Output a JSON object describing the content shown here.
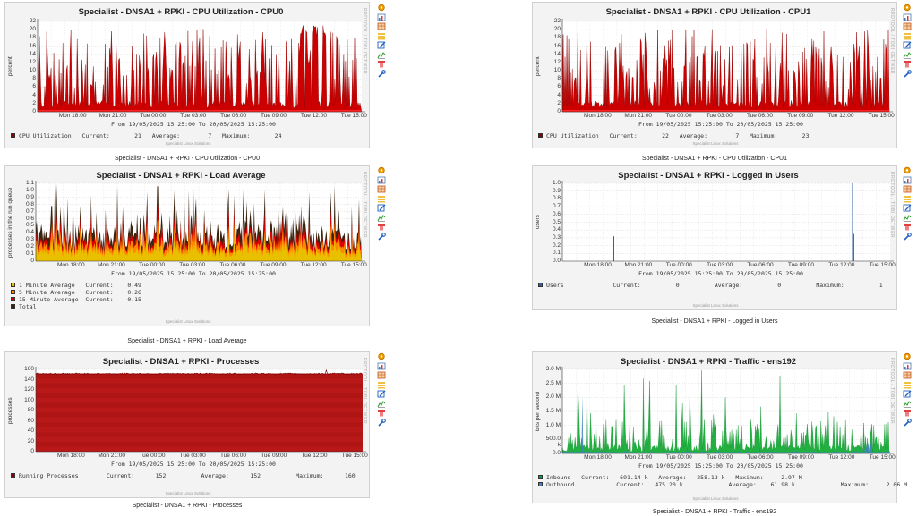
{
  "graphs": [
    {
      "title": "Specialist - DNSA1 + RPKI - CPU Utilization - CPU0",
      "caption": "Specialist - DNSA1 + RPKI - CPU Utilization - CPU0",
      "ylabel": "percent",
      "range": "From 19/05/2025 15:25:00 To 20/05/2025 15:25:00",
      "footer": "Specialist Linux Solutions",
      "side": "RRDTOOL / TOBI OETIKER",
      "legend": [
        {
          "color": "#8b0000",
          "text": "CPU Utilization   Current:       21   Average:        7   Maximum:       24"
        }
      ]
    },
    {
      "title": "Specialist - DNSA1 + RPKI - CPU Utilization - CPU1",
      "caption": "Specialist - DNSA1 + RPKI - CPU Utilization - CPU1",
      "ylabel": "percent",
      "range": "From 19/05/2025 15:25:00 To 20/05/2025 15:25:00",
      "footer": "Specialist Linux Solutions",
      "side": "RRDTOOL / TOBI OETIKER",
      "legend": [
        {
          "color": "#8b0000",
          "text": "CPU Utilization   Current:       22   Average:        7   Maximum:       23"
        }
      ]
    },
    {
      "title": "Specialist - DNSA1 + RPKI - Load Average",
      "caption": "Specialist - DNSA1 + RPKI - Load Average",
      "ylabel": "processes in the run queue",
      "range": "From 19/05/2025 15:25:00 To 20/05/2025 15:25:00",
      "footer": "Specialist Linux Solutions",
      "side": "RRDTOOL / TOBI OETIKER",
      "legend": [
        {
          "color": "#e8c000",
          "text": "1 Minute Average   Current:    0.49"
        },
        {
          "color": "#ff8800",
          "text": "5 Minute Average   Current:    0.26"
        },
        {
          "color": "#e00000",
          "text": "15 Minute Average  Current:    0.15"
        },
        {
          "color": "#3a2410",
          "text": "Total"
        }
      ]
    },
    {
      "title": "Specialist - DNSA1 + RPKI - Logged in Users",
      "caption": "Specialist - DNSA1 + RPKI - Logged in Users",
      "ylabel": "users",
      "range": "From 19/05/2025 15:25:00 To 20/05/2025 15:25:00",
      "footer": "Specialist Linux Solutions",
      "side": "RRDTOOL / TOBI OETIKER",
      "legend": [
        {
          "color": "#3060a0",
          "text": "Users              Current:          0          Average:          0          Maximum:          1"
        }
      ]
    },
    {
      "title": "Specialist - DNSA1 + RPKI - Processes",
      "caption": "Specialist - DNSA1 + RPKI - Processes",
      "ylabel": "processes",
      "range": "From 19/05/2025 15:25:00 To 20/05/2025 15:25:00",
      "footer": "Specialist Linux Solutions",
      "side": "RRDTOOL / TOBI OETIKER",
      "legend": [
        {
          "color": "#8b0000",
          "text": "Running Processes        Current:      152          Average:      152          Maximum:      160"
        }
      ]
    },
    {
      "title": "Specialist - DNSA1 + RPKI - Traffic - ens192",
      "caption": "Specialist - DNSA1 + RPKI - Traffic - ens192",
      "ylabel": "bits per second",
      "range": "From 19/05/2025 15:25:00 To 20/05/2025 15:25:00",
      "footer": "Specialist Linux Solutions",
      "side": "RRDTOOL / TOBI OETIKER",
      "legend": [
        {
          "color": "#00a040",
          "text": "Inbound   Current:   691.14 k   Average:   258.13 k   Maximum:     2.97 M"
        },
        {
          "color": "#4080c0",
          "text": "Outbound            Current:   475.20 k             Average:    61.98 k             Maximum:     2.06 M"
        }
      ]
    }
  ],
  "icons": [
    "gear-icon",
    "chart-icon",
    "table-icon",
    "stack-icon",
    "edit-icon",
    "graph-add-icon",
    "delete-icon",
    "wrench-icon"
  ],
  "chart_data": [
    {
      "type": "area",
      "title": "Specialist - DNSA1 + RPKI - CPU Utilization - CPU0",
      "ylabel": "percent",
      "ylim": [
        0,
        24
      ],
      "yticks": [
        "0",
        "2",
        "4",
        "6",
        "8",
        "10",
        "12",
        "14",
        "16",
        "18",
        "20",
        "22"
      ],
      "xticks": [
        "Mon 18:00",
        "Mon 21:00",
        "Tue 00:00",
        "Tue 03:00",
        "Tue 06:00",
        "Tue 09:00",
        "Tue 12:00",
        "Tue 15:00"
      ],
      "series": [
        {
          "name": "CPU Utilization",
          "color": "#cc0000",
          "current": 21,
          "average": 7,
          "maximum": 24
        }
      ]
    },
    {
      "type": "area",
      "title": "Specialist - DNSA1 + RPKI - CPU Utilization - CPU1",
      "ylabel": "percent",
      "ylim": [
        0,
        24
      ],
      "yticks": [
        "0",
        "2",
        "4",
        "6",
        "8",
        "10",
        "12",
        "14",
        "16",
        "18",
        "20",
        "22"
      ],
      "xticks": [
        "Mon 18:00",
        "Mon 21:00",
        "Tue 00:00",
        "Tue 03:00",
        "Tue 06:00",
        "Tue 09:00",
        "Tue 12:00",
        "Tue 15:00"
      ],
      "series": [
        {
          "name": "CPU Utilization",
          "color": "#cc0000",
          "current": 22,
          "average": 7,
          "maximum": 23
        }
      ]
    },
    {
      "type": "area",
      "title": "Specialist - DNSA1 + RPKI - Load Average",
      "ylabel": "processes in the run queue",
      "ylim": [
        0,
        1.1
      ],
      "yticks": [
        "0",
        "0.1",
        "0.2",
        "0.3",
        "0.4",
        "0.5",
        "0.6",
        "0.7",
        "0.8",
        "0.9",
        "1.0",
        "1.1"
      ],
      "xticks": [
        "Mon 18:00",
        "Mon 21:00",
        "Tue 00:00",
        "Tue 03:00",
        "Tue 06:00",
        "Tue 09:00",
        "Tue 12:00",
        "Tue 15:00"
      ],
      "series": [
        {
          "name": "1 Minute Average",
          "current": 0.49
        },
        {
          "name": "5 Minute Average",
          "current": 0.26
        },
        {
          "name": "15 Minute Average",
          "current": 0.15
        },
        {
          "name": "Total"
        }
      ]
    },
    {
      "type": "area",
      "title": "Specialist - DNSA1 + RPKI - Logged in Users",
      "ylabel": "users",
      "ylim": [
        0,
        1.0
      ],
      "yticks": [
        "0.0",
        "0.1",
        "0.2",
        "0.3",
        "0.4",
        "0.5",
        "0.6",
        "0.7",
        "0.8",
        "0.9",
        "1.0"
      ],
      "xticks": [
        "Mon 18:00",
        "Mon 21:00",
        "Tue 00:00",
        "Tue 03:00",
        "Tue 06:00",
        "Tue 09:00",
        "Tue 12:00",
        "Tue 15:00"
      ],
      "series": [
        {
          "name": "Users",
          "current": 0,
          "average": 0,
          "maximum": 1
        }
      ]
    },
    {
      "type": "area",
      "title": "Specialist - DNSA1 + RPKI - Processes",
      "ylabel": "processes",
      "ylim": [
        0,
        160
      ],
      "yticks": [
        "0",
        "20",
        "40",
        "60",
        "80",
        "100",
        "120",
        "140",
        "160"
      ],
      "xticks": [
        "Mon 18:00",
        "Mon 21:00",
        "Tue 00:00",
        "Tue 03:00",
        "Tue 06:00",
        "Tue 09:00",
        "Tue 12:00",
        "Tue 15:00"
      ],
      "series": [
        {
          "name": "Running Processes",
          "current": 152,
          "average": 152,
          "maximum": 160
        }
      ]
    },
    {
      "type": "area",
      "title": "Specialist - DNSA1 + RPKI - Traffic - ens192",
      "ylabel": "bits per second",
      "ylim": [
        0,
        3000000
      ],
      "yticks": [
        "0.0",
        "500.0 k",
        "1.0 M",
        "1.5 M",
        "2.0 M",
        "2.5 M",
        "3.0 M"
      ],
      "xticks": [
        "Mon 18:00",
        "Mon 21:00",
        "Tue 00:00",
        "Tue 03:00",
        "Tue 06:00",
        "Tue 09:00",
        "Tue 12:00",
        "Tue 15:00"
      ],
      "series": [
        {
          "name": "Inbound",
          "current": "691.14 k",
          "average": "258.13 k",
          "maximum": "2.97 M"
        },
        {
          "name": "Outbound",
          "current": "475.20 k",
          "average": "61.98 k",
          "maximum": "2.06 M"
        }
      ]
    }
  ]
}
